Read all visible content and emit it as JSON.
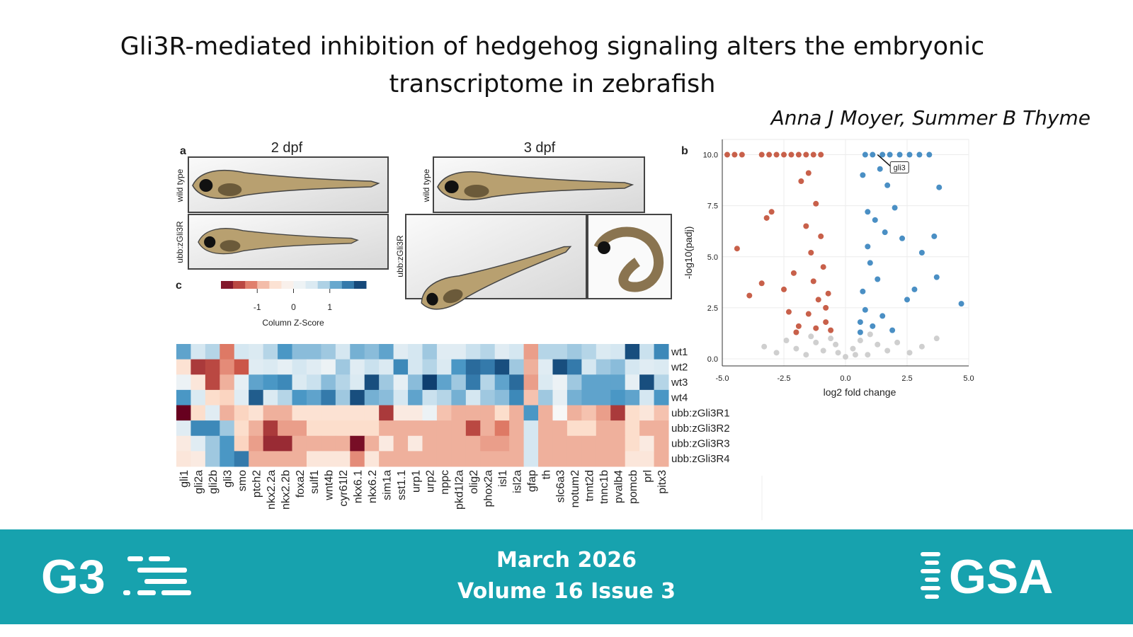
{
  "header": {
    "title": "Gli3R-mediated inhibition of hedgehog signaling alters the embryonic transcriptome in zebrafish",
    "authors": "Anna J Moyer, Summer B Thyme"
  },
  "figure": {
    "labels": [
      "a",
      "b",
      "c"
    ],
    "stages": [
      "2 dpf",
      "3 dpf"
    ],
    "genotypes": [
      "wild type",
      "ubb:zGli3R"
    ]
  },
  "chart_data": [
    {
      "type": "heatmap",
      "categories": [
        "gli1",
        "gli2a",
        "gli2b",
        "gli3",
        "smo",
        "ptch2",
        "nkx2.2a",
        "nkx2.2b",
        "foxa2",
        "sulf1",
        "wnt4b",
        "cyr61l2",
        "nkx6.1",
        "nkx6.2",
        "sim1a",
        "sst1.1",
        "urp1",
        "urp2",
        "nppc",
        "pkd1l2a",
        "olig2",
        "phox2a",
        "isl1",
        "isl2a",
        "gfap",
        "th",
        "slc6a3",
        "notum2",
        "tnnt2d",
        "tnnc1b",
        "pvalb4",
        "pomcb",
        "prl",
        "pitx3"
      ],
      "rows": [
        "wt1",
        "wt2",
        "wt3",
        "wt4",
        "ubb:zGli3R1",
        "ubb:zGli3R2",
        "ubb:zGli3R3",
        "ubb:zGli3R4"
      ],
      "values": [
        [
          1.2,
          0.6,
          0.8,
          -1.2,
          0.6,
          0.5,
          0.8,
          1.3,
          1.0,
          1.0,
          0.9,
          0.6,
          1.1,
          1.0,
          1.2,
          0.4,
          0.6,
          0.9,
          0.4,
          0.4,
          0.7,
          0.8,
          0.4,
          0.6,
          -1.0,
          0.8,
          0.8,
          0.9,
          0.8,
          0.5,
          0.6,
          1.8,
          0.7,
          1.4
        ],
        [
          -0.5,
          -1.6,
          -1.5,
          -1.1,
          -1.4,
          0.4,
          0.5,
          0.3,
          0.6,
          0.4,
          0.2,
          0.9,
          0.4,
          0.7,
          0.5,
          1.4,
          0.6,
          0.8,
          0.5,
          1.3,
          1.6,
          1.5,
          1.8,
          0.9,
          -0.9,
          0.4,
          1.8,
          1.5,
          0.6,
          0.9,
          1.0,
          0.6,
          0.4,
          0.5
        ],
        [
          0.2,
          -0.4,
          -1.5,
          -0.9,
          0.3,
          1.2,
          1.3,
          1.4,
          0.5,
          0.7,
          1.0,
          0.8,
          0.5,
          1.8,
          0.9,
          0.3,
          1.0,
          1.9,
          1.2,
          0.9,
          1.5,
          0.8,
          1.2,
          1.6,
          -1.0,
          0.5,
          0.2,
          0.9,
          1.2,
          1.2,
          1.2,
          0.3,
          1.8,
          0.8
        ],
        [
          1.3,
          0.5,
          -0.6,
          -0.7,
          0.4,
          1.7,
          0.5,
          0.8,
          1.3,
          1.2,
          1.5,
          0.9,
          1.8,
          1.1,
          1.0,
          0.6,
          1.2,
          0.7,
          0.8,
          1.1,
          0.6,
          0.9,
          1.0,
          1.4,
          -0.8,
          0.9,
          0.3,
          1.1,
          1.2,
          1.2,
          1.3,
          1.2,
          0.6,
          1.3
        ],
        [
          -2.0,
          -0.6,
          0.4,
          -0.9,
          -0.7,
          -0.5,
          -0.9,
          -0.9,
          -0.5,
          -0.5,
          -0.5,
          -0.5,
          -0.5,
          -0.5,
          -1.6,
          -0.3,
          -0.3,
          0.2,
          -0.8,
          -0.9,
          -0.9,
          -0.9,
          -0.6,
          -0.9,
          1.3,
          -0.9,
          0.0,
          -0.9,
          -0.8,
          -1.0,
          -1.6,
          -0.6,
          -0.4,
          -0.8
        ],
        [
          0.4,
          1.4,
          1.4,
          0.9,
          -0.6,
          -0.9,
          -1.6,
          -1.0,
          -1.0,
          -0.6,
          -0.6,
          -0.6,
          -0.6,
          -0.6,
          -0.9,
          -0.9,
          -0.9,
          -0.9,
          -0.9,
          -0.9,
          -1.5,
          -0.9,
          -1.2,
          -0.9,
          0.6,
          -0.9,
          -0.9,
          -0.6,
          -0.6,
          -0.9,
          -0.9,
          -0.6,
          -0.9,
          -0.9
        ],
        [
          -0.3,
          0.4,
          0.9,
          1.3,
          -0.7,
          -1.0,
          -1.7,
          -1.7,
          -0.9,
          -0.9,
          -0.9,
          -0.9,
          -1.9,
          -0.9,
          -0.3,
          -0.9,
          -0.3,
          -0.9,
          -0.9,
          -0.9,
          -0.9,
          -1.0,
          -1.0,
          -0.9,
          0.6,
          -0.9,
          -0.9,
          -0.9,
          -0.9,
          -0.9,
          -0.9,
          -0.6,
          -0.3,
          -0.9
        ],
        [
          -0.4,
          -0.3,
          0.9,
          1.3,
          1.5,
          -0.9,
          -0.9,
          -0.9,
          -0.9,
          -0.4,
          -0.4,
          -0.4,
          -1.1,
          -0.4,
          -0.9,
          -0.9,
          -0.9,
          -0.9,
          -0.9,
          -0.9,
          -0.9,
          -0.9,
          -0.9,
          -0.9,
          0.6,
          -0.9,
          -0.9,
          -0.9,
          -0.9,
          -0.9,
          -0.9,
          -0.4,
          -0.4,
          -0.9
        ]
      ],
      "colors": [
        "#67001f",
        "#d6604d",
        "#fddbc7",
        "#f7f7f7",
        "#d1e5f0",
        "#4393c3",
        "#053061"
      ],
      "zlim": [
        -2,
        2
      ],
      "zticks": [
        -1,
        0,
        1
      ],
      "colorbar_title": "Column Z-Score"
    },
    {
      "type": "scatter",
      "xlabel": "log2 fold change",
      "ylabel": "-log10(padj)",
      "xlim": [
        -5,
        5
      ],
      "ylim": [
        0,
        10.4
      ],
      "xticks": [
        {
          "value": -5,
          "label": "-5.0"
        },
        {
          "value": -2.5,
          "label": "-2.5"
        },
        {
          "value": 0,
          "label": "0.0"
        },
        {
          "value": 2.5,
          "label": "2.5"
        },
        {
          "value": 5,
          "label": "5.0"
        }
      ],
      "yticks": [
        {
          "value": 0,
          "label": "0.0"
        },
        {
          "value": 2.5,
          "label": "2.5"
        },
        {
          "value": 5,
          "label": "5.0"
        },
        {
          "value": 7.5,
          "label": "7.5"
        },
        {
          "value": 10,
          "label": "10.0"
        }
      ],
      "grid": true,
      "series": [
        {
          "color": "#cfcfcf",
          "x": [
            -3.3,
            -2.8,
            -2.4,
            -2.0,
            -1.6,
            -1.2,
            -0.9,
            -0.6,
            -0.3,
            0,
            0.3,
            0.6,
            0.9,
            1.3,
            1.7,
            2.1,
            2.6,
            3.1,
            3.7,
            -1.4,
            1.0,
            -0.4,
            0.4
          ],
          "values": [
            0.6,
            0.3,
            0.9,
            0.5,
            0.2,
            0.8,
            0.4,
            1.0,
            0.3,
            0.1,
            0.5,
            0.9,
            0.2,
            0.7,
            0.4,
            0.8,
            0.3,
            0.6,
            1.0,
            1.1,
            1.2,
            0.7,
            0.2
          ]
        },
        {
          "color": "#c8604a",
          "x": [
            -4.8,
            -4.5,
            -4.2,
            -3.4,
            -3.1,
            -2.8,
            -2.5,
            -2.2,
            -1.9,
            -1.6,
            -1.3,
            -1.0,
            -4.4,
            -3.9,
            -3.4,
            -3.2,
            -3.0,
            -2.5,
            -2.3,
            -2.1,
            -1.8,
            -1.6,
            -1.5,
            -1.4,
            -1.3,
            -1.2,
            -1.1,
            -1.0,
            -0.9,
            -0.8,
            -0.7,
            -0.6,
            -1.9,
            -1.5,
            -2.0,
            -1.2,
            -0.8
          ],
          "values": [
            10,
            10,
            10,
            10,
            10,
            10,
            10,
            10,
            10,
            10,
            10,
            10,
            5.4,
            3.1,
            3.7,
            6.9,
            7.2,
            3.4,
            2.3,
            4.2,
            8.7,
            6.5,
            9.1,
            5.2,
            3.8,
            7.6,
            2.9,
            6.0,
            4.5,
            1.8,
            3.2,
            1.4,
            1.6,
            2.2,
            1.3,
            1.5,
            2.5
          ]
        },
        {
          "color": "#4a8fc4",
          "x": [
            0.8,
            1.1,
            1.5,
            1.8,
            2.2,
            2.6,
            3.0,
            3.4,
            3.8,
            3.6,
            3.1,
            4.7,
            3.7,
            2.8,
            2.3,
            2.0,
            1.7,
            1.4,
            1.2,
            1.0,
            0.9,
            0.7,
            0.6,
            0.8,
            1.1,
            1.5,
            1.9,
            0.9,
            1.3,
            2.5,
            1.6,
            0.7,
            0.6
          ],
          "values": [
            10,
            10,
            10,
            10,
            10,
            10,
            10,
            10,
            8.4,
            6.0,
            5.2,
            2.7,
            4.0,
            3.4,
            5.9,
            7.4,
            8.5,
            9.3,
            6.8,
            4.7,
            7.2,
            3.3,
            1.8,
            2.4,
            1.6,
            2.1,
            1.4,
            5.5,
            3.9,
            2.9,
            6.2,
            9.0,
            1.3
          ]
        }
      ],
      "annotations": [
        {
          "text": "gli3",
          "x": 1.3,
          "y": 10
        }
      ]
    }
  ],
  "footer": {
    "logo_left": "G3",
    "date": "March 2026",
    "issue": "Volume 16 Issue 3",
    "logo_right": "GSA"
  }
}
